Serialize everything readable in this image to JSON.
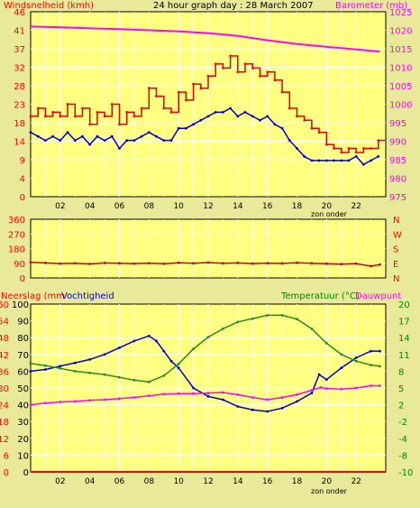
{
  "colors": {
    "background": "#e9e99a",
    "plot_bg": "#ffff80",
    "grid": "#ffffff",
    "wind": "#dd0000",
    "wind_gust": "#ff0000",
    "wind_avg": "#0000cc",
    "barometer": "#ff00ff",
    "direction": "#cc0000",
    "rain": "#ff0000",
    "humidity": "#0000cc",
    "temperature": "#228b22",
    "dewpoint": "#ff00ff",
    "text_red": "#ff0000",
    "text_green": "#008800",
    "text_magenta": "#ff00ff",
    "text_dark": "#000000"
  },
  "header": {
    "left_label": "Windsnelheid (kmh)",
    "title": "24 hour graph day : 28 March 2007",
    "right_label": "Barometer (mb)"
  },
  "bottom_header": {
    "rain_label": "Neerslag (mm",
    "humidity_label": "Vochtigheid",
    "temp_label": "Temperatuur (°C)",
    "dew_label": "Dauwpunt"
  },
  "x_ticks": [
    "02",
    "04",
    "06",
    "08",
    "10",
    "12",
    "14",
    "16",
    "18",
    "20",
    "22"
  ],
  "sunset_label": "zon onder",
  "chart_data": [
    {
      "type": "line",
      "panel": "wind-barometer",
      "x_range": [
        0,
        24
      ],
      "ylim_left": [
        0,
        46
      ],
      "left_ticks": [
        "0",
        "4",
        "9",
        "14",
        "18",
        "23",
        "28",
        "32",
        "37",
        "41",
        "46"
      ],
      "ylim_right": [
        975,
        1025
      ],
      "right_ticks": [
        "975",
        "980",
        "985",
        "990",
        "995",
        "1000",
        "1005",
        "1010",
        "1015",
        "1020",
        "1025"
      ],
      "series": [
        {
          "name": "Windsnelheid",
          "axis": "left",
          "x": [
            0.0,
            0.5,
            1.0,
            1.5,
            2.0,
            2.5,
            3.0,
            3.5,
            4.0,
            4.5,
            5.0,
            5.5,
            6.0,
            6.5,
            7.0,
            7.5,
            8.0,
            8.5,
            9.0,
            9.5,
            10.0,
            10.5,
            11.0,
            11.5,
            12.0,
            12.5,
            13.0,
            13.5,
            14.0,
            14.5,
            15.0,
            15.5,
            16.0,
            16.5,
            17.0,
            17.5,
            18.0,
            18.5,
            19.0,
            19.5,
            20.0,
            20.5,
            21.0,
            21.5,
            22.0,
            22.5,
            23.0,
            23.5
          ],
          "y": [
            20,
            22,
            20,
            21,
            20,
            23,
            20,
            22,
            18,
            21,
            20,
            23,
            18,
            21,
            20,
            22,
            27,
            25,
            22,
            21,
            26,
            24,
            28,
            27,
            30,
            33,
            32,
            35,
            31,
            33,
            32,
            30,
            31,
            29,
            26,
            22,
            20,
            19,
            17,
            16,
            13,
            12,
            11,
            12,
            11,
            12,
            12,
            14
          ]
        },
        {
          "name": "Gemiddeld",
          "axis": "left",
          "x": [
            0.0,
            0.5,
            1.0,
            1.5,
            2.0,
            2.5,
            3.0,
            3.5,
            4.0,
            4.5,
            5.0,
            5.5,
            6.0,
            6.5,
            7.0,
            7.5,
            8.0,
            8.5,
            9.0,
            9.5,
            10.0,
            10.5,
            11.0,
            11.5,
            12.0,
            12.5,
            13.0,
            13.5,
            14.0,
            14.5,
            15.0,
            15.5,
            16.0,
            16.5,
            17.0,
            17.5,
            18.0,
            18.5,
            19.0,
            19.5,
            20.0,
            20.5,
            21.0,
            21.5,
            22.0,
            22.5,
            23.0,
            23.5
          ],
          "y": [
            16,
            15,
            14,
            15,
            14,
            16,
            14,
            15,
            13,
            15,
            14,
            15,
            12,
            14,
            14,
            15,
            16,
            15,
            14,
            14,
            17,
            17,
            18,
            19,
            20,
            21,
            21,
            22,
            20,
            21,
            20,
            19,
            20,
            18,
            17,
            14,
            12,
            10,
            9,
            9,
            9,
            9,
            9,
            9,
            10,
            8,
            9,
            10
          ]
        },
        {
          "name": "Barometer",
          "axis": "right",
          "x": [
            0,
            2,
            4,
            6,
            8,
            10,
            12,
            14,
            16,
            18,
            20,
            22,
            23.6
          ],
          "y": [
            1021,
            1020.8,
            1020.5,
            1020.3,
            1020,
            1019.7,
            1019.2,
            1018.5,
            1017.3,
            1016.3,
            1015.5,
            1014.8,
            1014.2
          ]
        }
      ]
    },
    {
      "type": "line",
      "panel": "direction",
      "x_range": [
        0,
        24
      ],
      "ylim": [
        0,
        360
      ],
      "left_ticks": [
        "0",
        "90",
        "180",
        "270",
        "360"
      ],
      "right_ticks": [
        "N",
        "E",
        "S",
        "W",
        "N"
      ],
      "series": [
        {
          "name": "Windrichting",
          "x": [
            0,
            1,
            2,
            3,
            4,
            5,
            6,
            7,
            8,
            9,
            10,
            11,
            12,
            13,
            14,
            15,
            16,
            17,
            18,
            19,
            20,
            21,
            22,
            23,
            23.6
          ],
          "y": [
            95,
            92,
            88,
            90,
            86,
            92,
            90,
            88,
            91,
            87,
            93,
            90,
            94,
            90,
            92,
            88,
            91,
            89,
            93,
            90,
            87,
            85,
            88,
            72,
            82
          ]
        }
      ]
    },
    {
      "type": "line",
      "panel": "rain-humidity-temperature",
      "x_range": [
        0,
        24
      ],
      "ylim_left": [
        0,
        100
      ],
      "left_ticks_rain": [
        "0",
        "6",
        "12",
        "18",
        "24",
        "30",
        "36",
        "42",
        "48",
        "54",
        "60"
      ],
      "left_ticks_humidity": [
        "0",
        "10",
        "20",
        "30",
        "40",
        "50",
        "60",
        "70",
        "80",
        "90",
        "100"
      ],
      "ylim_right": [
        -10,
        20
      ],
      "right_ticks": [
        "-10",
        "-8",
        "-4",
        "-2",
        "2",
        "5",
        "8",
        "11",
        "14",
        "17",
        "20"
      ],
      "series": [
        {
          "name": "Neerslag",
          "axis": "left",
          "x": [
            0,
            24
          ],
          "y": [
            0,
            0
          ]
        },
        {
          "name": "Vochtigheid",
          "axis": "left",
          "x": [
            0,
            1,
            2,
            3,
            4,
            5,
            6,
            7,
            8,
            8.5,
            9,
            9.5,
            10,
            11,
            12,
            13,
            14,
            15,
            16,
            17,
            18,
            19,
            19.5,
            20,
            21,
            22,
            23,
            23.6
          ],
          "y": [
            60,
            61,
            63,
            65,
            67,
            70,
            74,
            78,
            81,
            78,
            72,
            66,
            62,
            50,
            45,
            43,
            39,
            37,
            36,
            38,
            42,
            47,
            58,
            55,
            62,
            68,
            72,
            72
          ]
        },
        {
          "name": "Temperatuur",
          "axis": "right",
          "x": [
            0,
            1,
            2,
            3,
            4,
            5,
            6,
            7,
            8,
            9,
            10,
            11,
            12,
            13,
            14,
            15,
            16,
            17,
            18,
            19,
            20,
            21,
            22,
            23,
            23.6
          ],
          "y": [
            9.4,
            9,
            8.5,
            8,
            7.7,
            7.4,
            6.9,
            6.4,
            6.1,
            7.2,
            9.3,
            12,
            14.1,
            15.6,
            16.8,
            17.4,
            18.0,
            18.0,
            17.3,
            15.6,
            13,
            11,
            9.8,
            9.1,
            8.9
          ]
        },
        {
          "name": "Dauwpunt",
          "axis": "right",
          "x": [
            0,
            1,
            2,
            3,
            4,
            5,
            6,
            7,
            8,
            9,
            10,
            11,
            12,
            13,
            14,
            15,
            16,
            17,
            18,
            19,
            19.6,
            20,
            21,
            22,
            23,
            23.6
          ],
          "y": [
            2,
            2.3,
            2.5,
            2.6,
            2.8,
            2.9,
            3.1,
            3.3,
            3.6,
            3.9,
            4,
            4,
            4.1,
            4.2,
            3.8,
            3.3,
            2.9,
            3.3,
            3.8,
            4.6,
            5.1,
            4.9,
            4.8,
            5,
            5.4,
            5.4
          ]
        }
      ]
    }
  ]
}
